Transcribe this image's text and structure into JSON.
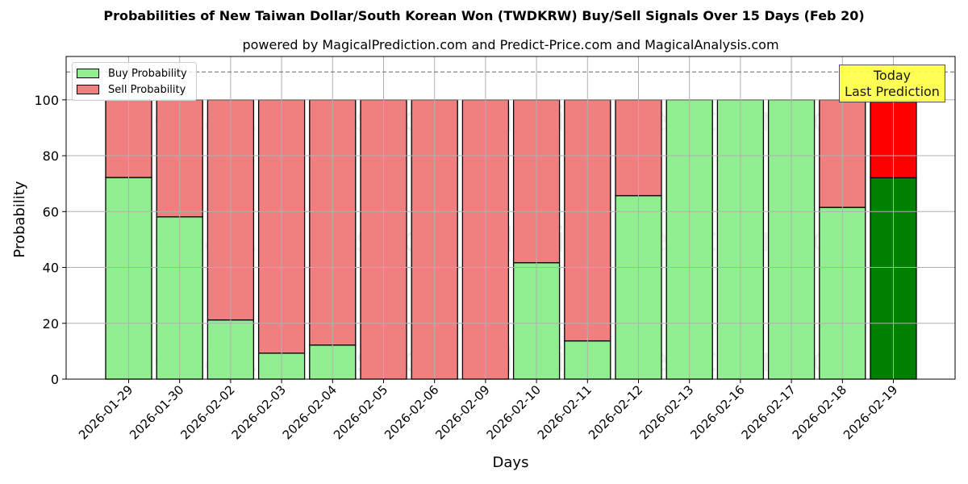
{
  "header": {
    "title": "Probabilities of New Taiwan Dollar/South Korean Won (TWDKRW) Buy/Sell Signals Over 15 Days (Feb 20)",
    "subtitle": "powered by MagicalPrediction.com and Predict-Price.com and MagicalAnalysis.com"
  },
  "legend": {
    "buy_label": "Buy Probability",
    "sell_label": "Sell Probability"
  },
  "annotation": {
    "line1": "Today",
    "line2": "Last Prediction"
  },
  "watermarks": [
    "MagicalAnalysis.com",
    "MagicalPrediction.com"
  ],
  "colors": {
    "buy": "#90ee90",
    "sell": "#f08080",
    "buy_today": "#008000",
    "sell_today": "#ff0000",
    "annotation_bg": "#ffff44"
  },
  "chart_data": {
    "type": "bar",
    "stacked": true,
    "title": "Probabilities of New Taiwan Dollar/South Korean Won (TWDKRW) Buy/Sell Signals Over 15 Days (Feb 20)",
    "subtitle": "powered by MagicalPrediction.com and Predict-Price.com and MagicalAnalysis.com",
    "xlabel": "Days",
    "ylabel": "Probability",
    "ylim": [
      0,
      115
    ],
    "yticks": [
      0,
      20,
      40,
      60,
      80,
      100
    ],
    "grid": true,
    "legend_position": "upper left",
    "reference_line": {
      "y": 110,
      "style": "dashed"
    },
    "categories": [
      "2026-01-29",
      "2026-01-30",
      "2026-02-02",
      "2026-02-03",
      "2026-02-04",
      "2026-02-05",
      "2026-02-06",
      "2026-02-09",
      "2026-02-10",
      "2026-02-11",
      "2026-02-12",
      "2026-02-13",
      "2026-02-16",
      "2026-02-17",
      "2026-02-18",
      "2026-02-19"
    ],
    "series": [
      {
        "name": "Buy Probability",
        "values": [
          72.2,
          58.1,
          21.2,
          9.3,
          12.2,
          0,
          0,
          0,
          41.7,
          13.7,
          65.7,
          100,
          100,
          100,
          61.5,
          72.1
        ]
      },
      {
        "name": "Sell Probability",
        "values": [
          27.8,
          41.9,
          78.8,
          90.7,
          87.8,
          100,
          100,
          100,
          58.3,
          86.3,
          34.3,
          0,
          0,
          0,
          38.5,
          27.9
        ]
      }
    ],
    "highlight_last": true
  }
}
